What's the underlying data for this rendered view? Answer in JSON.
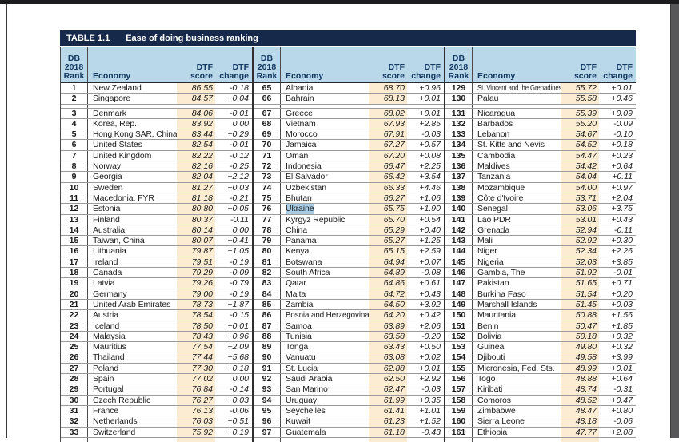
{
  "page": {
    "title_label": "TABLE 1.1",
    "title": "Ease of doing business ranking"
  },
  "colors": {
    "title_bar_navy": "#16294b",
    "header_blue": "#b9d8ea",
    "score_column_highlight": "#fcecd2",
    "text_selection_blue": "#a9cde6"
  },
  "table": {
    "headers": {
      "rank_lines": [
        "DB",
        "2018",
        "Rank"
      ],
      "economy": "Economy",
      "score_lines": [
        "DTF",
        "score"
      ],
      "change_lines": [
        "DTF",
        "change"
      ]
    },
    "selected_economy": "Ukraine",
    "sections": [
      {
        "rows": [
          {
            "rank": "1",
            "economy": "New Zealand",
            "score": "86.55",
            "change": "-0.18"
          },
          {
            "rank": "2",
            "economy": "Singapore",
            "score": "84.57",
            "change": "+0.04"
          },
          {
            "rank": "3",
            "economy": "Denmark",
            "score": "84.06",
            "change": "-0.01"
          },
          {
            "rank": "4",
            "economy": "Korea, Rep.",
            "score": "83.92",
            "change": "0.00"
          },
          {
            "rank": "5",
            "economy": "Hong Kong SAR, China",
            "score": "83.44",
            "change": "+0.29"
          },
          {
            "rank": "6",
            "economy": "United States",
            "score": "82.54",
            "change": "-0.01"
          },
          {
            "rank": "7",
            "economy": "United Kingdom",
            "score": "82.22",
            "change": "-0.12"
          },
          {
            "rank": "8",
            "economy": "Norway",
            "score": "82.16",
            "change": "-0.25"
          },
          {
            "rank": "9",
            "economy": "Georgia",
            "score": "82.04",
            "change": "+2.12"
          },
          {
            "rank": "10",
            "economy": "Sweden",
            "score": "81.27",
            "change": "+0.03"
          },
          {
            "rank": "11",
            "economy": "Macedonia, FYR",
            "score": "81.18",
            "change": "-0.21"
          },
          {
            "rank": "12",
            "economy": "Estonia",
            "score": "80.80",
            "change": "+0.05"
          },
          {
            "rank": "13",
            "economy": "Finland",
            "score": "80.37",
            "change": "-0.11"
          },
          {
            "rank": "14",
            "economy": "Australia",
            "score": "80.14",
            "change": "0.00"
          },
          {
            "rank": "15",
            "economy": "Taiwan, China",
            "score": "80.07",
            "change": "+0.41"
          },
          {
            "rank": "16",
            "economy": "Lithuania",
            "score": "79.87",
            "change": "+1.05"
          },
          {
            "rank": "17",
            "economy": "Ireland",
            "score": "79.51",
            "change": "-0.19"
          },
          {
            "rank": "18",
            "economy": "Canada",
            "score": "79.29",
            "change": "-0.09"
          },
          {
            "rank": "19",
            "economy": "Latvia",
            "score": "79.26",
            "change": "-0.79"
          },
          {
            "rank": "20",
            "economy": "Germany",
            "score": "79.00",
            "change": "-0.19"
          },
          {
            "rank": "21",
            "economy": "United Arab Emirates",
            "score": "78.73",
            "change": "+1.87"
          },
          {
            "rank": "22",
            "economy": "Austria",
            "score": "78.54",
            "change": "-0.15"
          },
          {
            "rank": "23",
            "economy": "Iceland",
            "score": "78.50",
            "change": "+0.01"
          },
          {
            "rank": "24",
            "economy": "Malaysia",
            "score": "78.43",
            "change": "+0.96"
          },
          {
            "rank": "25",
            "economy": "Mauritius",
            "score": "77.54",
            "change": "+2.09"
          },
          {
            "rank": "26",
            "economy": "Thailand",
            "score": "77.44",
            "change": "+5.68"
          },
          {
            "rank": "27",
            "economy": "Poland",
            "score": "77.30",
            "change": "+0.18"
          },
          {
            "rank": "28",
            "economy": "Spain",
            "score": "77.02",
            "change": "0.00"
          },
          {
            "rank": "29",
            "economy": "Portugal",
            "score": "76.84",
            "change": "-0.14"
          },
          {
            "rank": "30",
            "economy": "Czech Republic",
            "score": "76.27",
            "change": "+0.03"
          },
          {
            "rank": "31",
            "economy": "France",
            "score": "76.13",
            "change": "-0.06"
          },
          {
            "rank": "32",
            "economy": "Netherlands",
            "score": "76.03",
            "change": "+0.51"
          },
          {
            "rank": "33",
            "economy": "Switzerland",
            "score": "75.92",
            "change": "+0.19"
          }
        ]
      },
      {
        "rows": [
          {
            "rank": "65",
            "economy": "Albania",
            "score": "68.70",
            "change": "+0.96"
          },
          {
            "rank": "66",
            "economy": "Bahrain",
            "score": "68.13",
            "change": "+0.01"
          },
          {
            "rank": "67",
            "economy": "Greece",
            "score": "68.02",
            "change": "+0.01"
          },
          {
            "rank": "68",
            "economy": "Vietnam",
            "score": "67.93",
            "change": "+2.85"
          },
          {
            "rank": "69",
            "economy": "Morocco",
            "score": "67.91",
            "change": "-0.03"
          },
          {
            "rank": "70",
            "economy": "Jamaica",
            "score": "67.27",
            "change": "+0.57"
          },
          {
            "rank": "71",
            "economy": "Oman",
            "score": "67.20",
            "change": "+0.08"
          },
          {
            "rank": "72",
            "economy": "Indonesia",
            "score": "66.47",
            "change": "+2.25"
          },
          {
            "rank": "73",
            "economy": "El Salvador",
            "score": "66.42",
            "change": "+3.54"
          },
          {
            "rank": "74",
            "economy": "Uzbekistan",
            "score": "66.33",
            "change": "+4.46"
          },
          {
            "rank": "75",
            "economy": "Bhutan",
            "score": "66.27",
            "change": "+1.06"
          },
          {
            "rank": "76",
            "economy": "Ukraine",
            "score": "65.75",
            "change": "+1.90"
          },
          {
            "rank": "77",
            "economy": "Kyrgyz Republic",
            "score": "65.70",
            "change": "+0.54"
          },
          {
            "rank": "78",
            "economy": "China",
            "score": "65.29",
            "change": "+0.40"
          },
          {
            "rank": "79",
            "economy": "Panama",
            "score": "65.27",
            "change": "+1.25"
          },
          {
            "rank": "80",
            "economy": "Kenya",
            "score": "65.15",
            "change": "+2.59"
          },
          {
            "rank": "81",
            "economy": "Botswana",
            "score": "64.94",
            "change": "+0.07"
          },
          {
            "rank": "82",
            "economy": "South Africa",
            "score": "64.89",
            "change": "-0.08"
          },
          {
            "rank": "83",
            "economy": "Qatar",
            "score": "64.86",
            "change": "+0.61"
          },
          {
            "rank": "84",
            "economy": "Malta",
            "score": "64.72",
            "change": "+0.43"
          },
          {
            "rank": "85",
            "economy": "Zambia",
            "score": "64.50",
            "change": "+3.92"
          },
          {
            "rank": "86",
            "economy": "Bosnia and Herzegovina",
            "score": "64.20",
            "change": "+0.42"
          },
          {
            "rank": "87",
            "economy": "Samoa",
            "score": "63.89",
            "change": "+2.06"
          },
          {
            "rank": "88",
            "economy": "Tunisia",
            "score": "63.58",
            "change": "-0.20"
          },
          {
            "rank": "89",
            "economy": "Tonga",
            "score": "63.43",
            "change": "+0.50"
          },
          {
            "rank": "90",
            "economy": "Vanuatu",
            "score": "63.08",
            "change": "+0.02"
          },
          {
            "rank": "91",
            "economy": "St. Lucia",
            "score": "62.88",
            "change": "+0.01"
          },
          {
            "rank": "92",
            "economy": "Saudi Arabia",
            "score": "62.50",
            "change": "+2.92"
          },
          {
            "rank": "93",
            "economy": "San Marino",
            "score": "62.47",
            "change": "-0.03"
          },
          {
            "rank": "94",
            "economy": "Uruguay",
            "score": "61.99",
            "change": "+0.35"
          },
          {
            "rank": "95",
            "economy": "Seychelles",
            "score": "61.41",
            "change": "+1.01"
          },
          {
            "rank": "96",
            "economy": "Kuwait",
            "score": "61.23",
            "change": "+1.52"
          },
          {
            "rank": "97",
            "economy": "Guatemala",
            "score": "61.18",
            "change": "-0.43"
          }
        ]
      },
      {
        "rows": [
          {
            "rank": "129",
            "economy": "St. Vincent and the Grenadines",
            "score": "55.72",
            "change": "+0.01"
          },
          {
            "rank": "130",
            "economy": "Palau",
            "score": "55.58",
            "change": "+0.46"
          },
          {
            "rank": "131",
            "economy": "Nicaragua",
            "score": "55.39",
            "change": "+0.09"
          },
          {
            "rank": "132",
            "economy": "Barbados",
            "score": "55.20",
            "change": "-0.09"
          },
          {
            "rank": "133",
            "economy": "Lebanon",
            "score": "54.67",
            "change": "-0.10"
          },
          {
            "rank": "134",
            "economy": "St. Kitts and Nevis",
            "score": "54.52",
            "change": "+0.18"
          },
          {
            "rank": "135",
            "economy": "Cambodia",
            "score": "54.47",
            "change": "+0.23"
          },
          {
            "rank": "136",
            "economy": "Maldives",
            "score": "54.42",
            "change": "+0.64"
          },
          {
            "rank": "137",
            "economy": "Tanzania",
            "score": "54.04",
            "change": "+0.11"
          },
          {
            "rank": "138",
            "economy": "Mozambique",
            "score": "54.00",
            "change": "+0.97"
          },
          {
            "rank": "139",
            "economy": "Côte d'Ivoire",
            "score": "53.71",
            "change": "+2.04"
          },
          {
            "rank": "140",
            "economy": "Senegal",
            "score": "53.06",
            "change": "+3.75"
          },
          {
            "rank": "141",
            "economy": "Lao PDR",
            "score": "53.01",
            "change": "+0.43"
          },
          {
            "rank": "142",
            "economy": "Grenada",
            "score": "52.94",
            "change": "-0.11"
          },
          {
            "rank": "143",
            "economy": "Mali",
            "score": "52.92",
            "change": "+0.30"
          },
          {
            "rank": "144",
            "economy": "Niger",
            "score": "52.34",
            "change": "+2.26"
          },
          {
            "rank": "145",
            "economy": "Nigeria",
            "score": "52.03",
            "change": "+3.85"
          },
          {
            "rank": "146",
            "economy": "Gambia, The",
            "score": "51.92",
            "change": "-0.01"
          },
          {
            "rank": "147",
            "economy": "Pakistan",
            "score": "51.65",
            "change": "+0.71"
          },
          {
            "rank": "148",
            "economy": "Burkina Faso",
            "score": "51.54",
            "change": "+0.20"
          },
          {
            "rank": "149",
            "economy": "Marshall Islands",
            "score": "51.45",
            "change": "+0.03"
          },
          {
            "rank": "150",
            "economy": "Mauritania",
            "score": "50.88",
            "change": "+1.56"
          },
          {
            "rank": "151",
            "economy": "Benin",
            "score": "50.47",
            "change": "+1.85"
          },
          {
            "rank": "152",
            "economy": "Bolivia",
            "score": "50.18",
            "change": "+0.32"
          },
          {
            "rank": "153",
            "economy": "Guinea",
            "score": "49.80",
            "change": "+0.32"
          },
          {
            "rank": "154",
            "economy": "Djibouti",
            "score": "49.58",
            "change": "+3.99"
          },
          {
            "rank": "155",
            "economy": "Micronesia, Fed. Sts.",
            "score": "48.99",
            "change": "+0.01"
          },
          {
            "rank": "156",
            "economy": "Togo",
            "score": "48.88",
            "change": "+0.64"
          },
          {
            "rank": "157",
            "economy": "Kiribati",
            "score": "48.74",
            "change": "-0.31"
          },
          {
            "rank": "158",
            "economy": "Comoros",
            "score": "48.52",
            "change": "+0.47"
          },
          {
            "rank": "159",
            "economy": "Zimbabwe",
            "score": "48.47",
            "change": "+0.80"
          },
          {
            "rank": "160",
            "economy": "Sierra Leone",
            "score": "48.18",
            "change": "-0.06"
          },
          {
            "rank": "161",
            "economy": "Ethiopia",
            "score": "47.77",
            "change": "+2.08"
          }
        ]
      }
    ]
  }
}
